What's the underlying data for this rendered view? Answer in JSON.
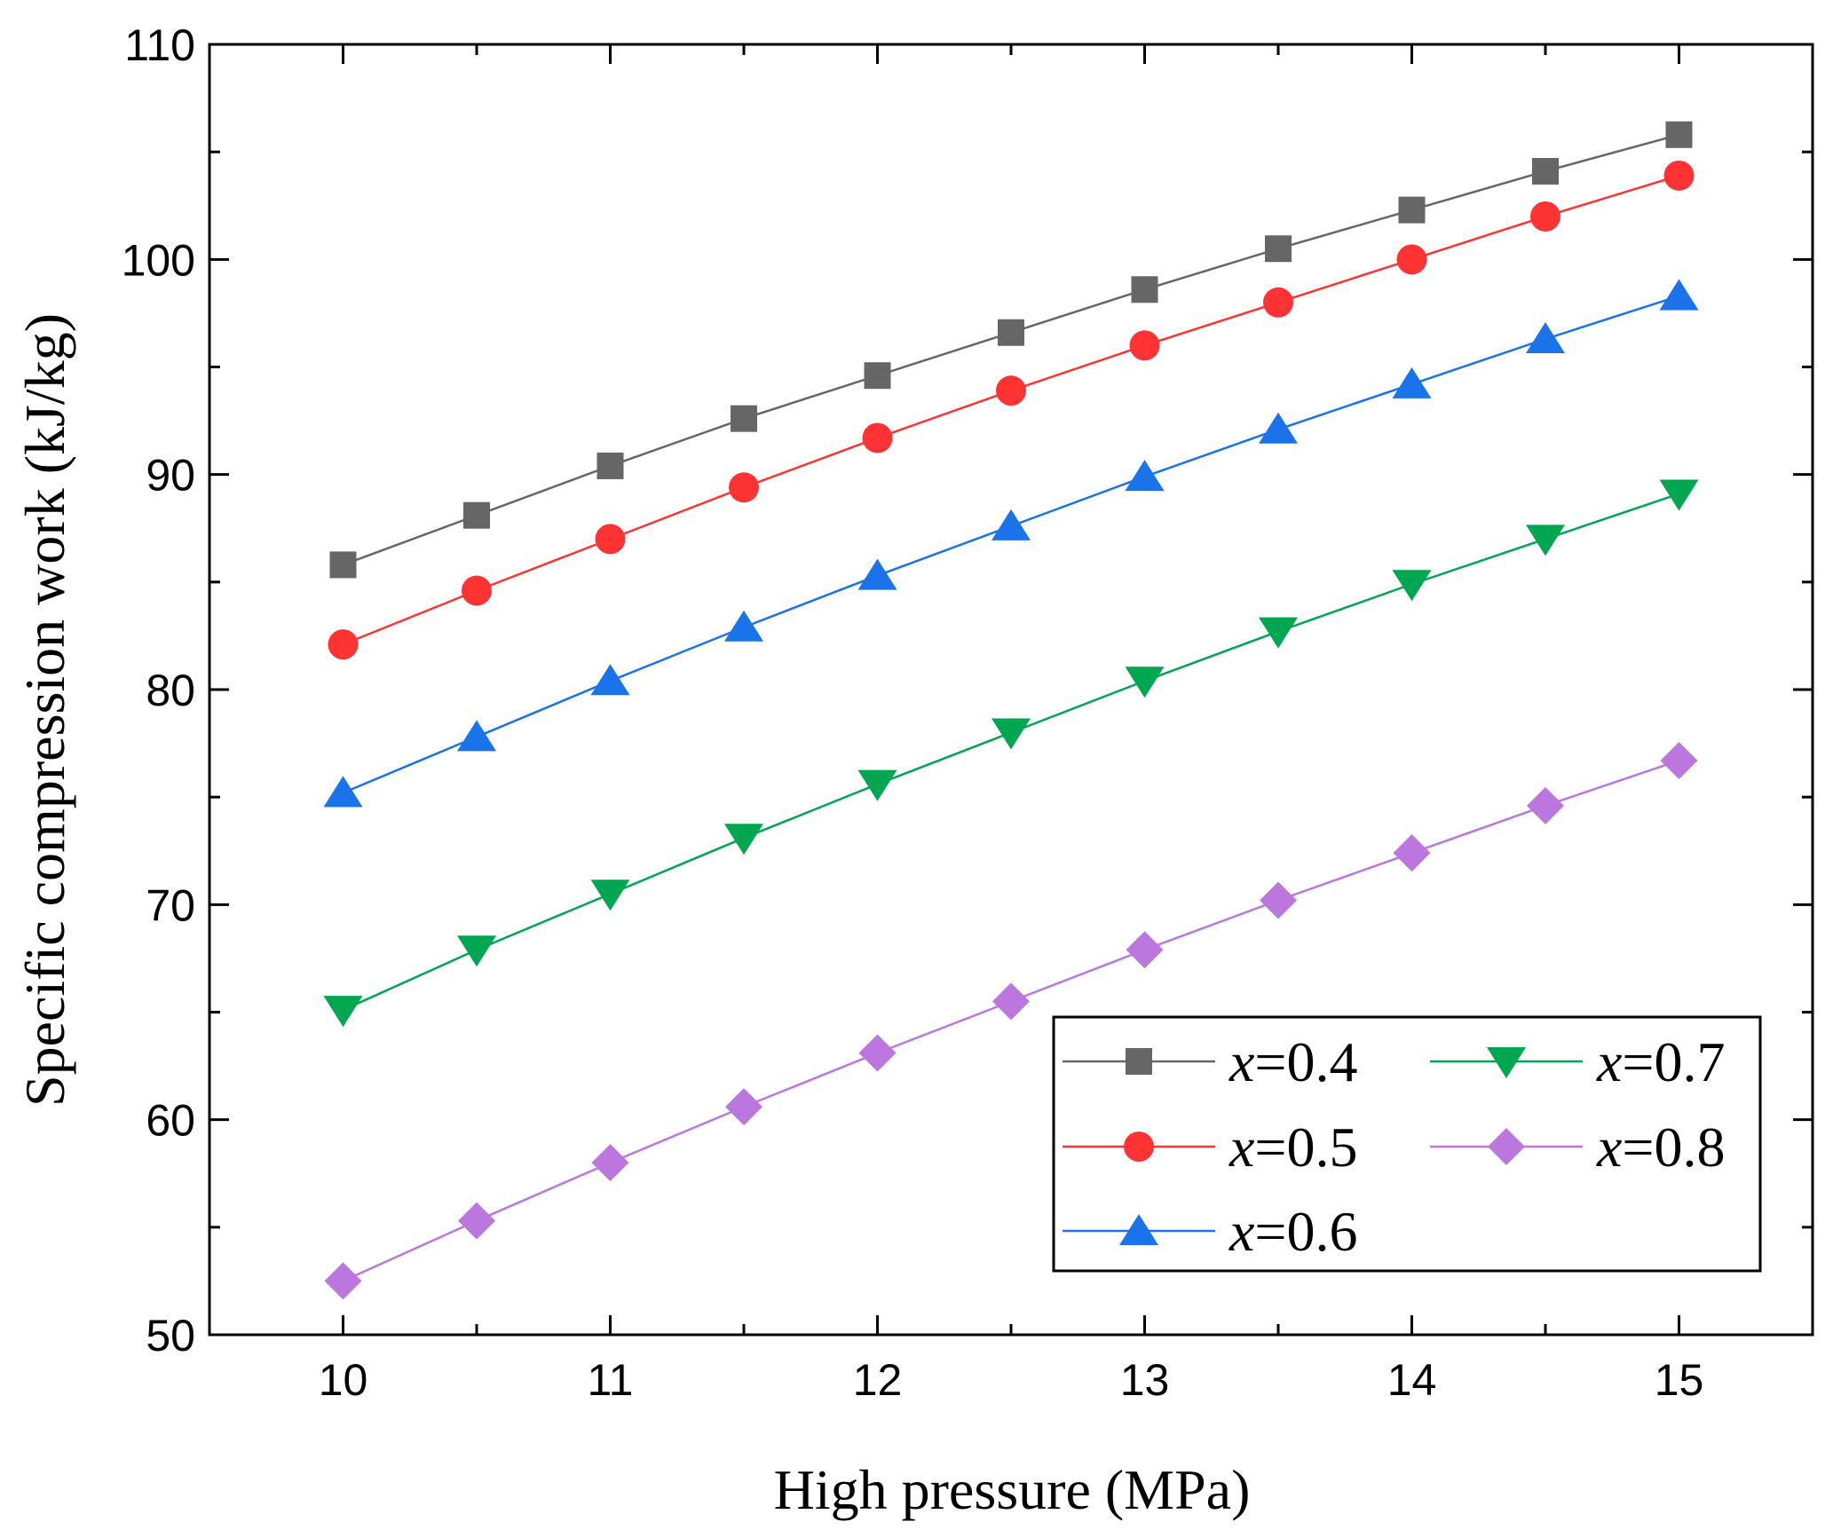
{
  "chart_data": {
    "type": "line",
    "title": "",
    "xlabel": "High pressure (MPa)",
    "ylabel": "Specific compression work (kJ/kg)",
    "xlim": [
      9.5,
      15.5
    ],
    "ylim": [
      50,
      110
    ],
    "xticks": [
      10,
      11,
      12,
      13,
      14,
      15
    ],
    "yticks": [
      50,
      60,
      70,
      80,
      90,
      100,
      110
    ],
    "grid": false,
    "legend_position": "bottom-right",
    "x": [
      10,
      10.5,
      11,
      11.5,
      12,
      12.5,
      13,
      13.5,
      14,
      14.5,
      15
    ],
    "series": [
      {
        "name": "x=0.4",
        "var": "x",
        "value_label": "=0.4",
        "color": "#666666",
        "marker": "square",
        "values": [
          85.8,
          88.1,
          90.4,
          92.6,
          94.6,
          96.6,
          98.6,
          100.5,
          102.3,
          104.1,
          105.8
        ]
      },
      {
        "name": "x=0.5",
        "var": "x",
        "value_label": "=0.5",
        "color": "#ff3333",
        "marker": "circle",
        "values": [
          82.1,
          84.6,
          87.0,
          89.4,
          91.7,
          93.9,
          96.0,
          98.0,
          100.0,
          102.0,
          103.9
        ]
      },
      {
        "name": "x=0.6",
        "var": "x",
        "value_label": "=0.6",
        "color": "#1a73e8",
        "marker": "triangle-up",
        "values": [
          75.2,
          77.8,
          80.4,
          82.9,
          85.3,
          87.6,
          89.9,
          92.1,
          94.2,
          96.3,
          98.3
        ]
      },
      {
        "name": "x=0.7",
        "var": "x",
        "value_label": "=0.7",
        "color": "#00a650",
        "marker": "triangle-down",
        "values": [
          65.1,
          67.9,
          70.5,
          73.1,
          75.6,
          78.0,
          80.4,
          82.7,
          84.9,
          87.0,
          89.1
        ]
      },
      {
        "name": "x=0.8",
        "var": "x",
        "value_label": "=0.8",
        "color": "#bb77dd",
        "marker": "diamond",
        "values": [
          52.5,
          55.3,
          58.0,
          60.6,
          63.1,
          65.5,
          67.9,
          70.2,
          72.4,
          74.6,
          76.7
        ]
      }
    ]
  }
}
